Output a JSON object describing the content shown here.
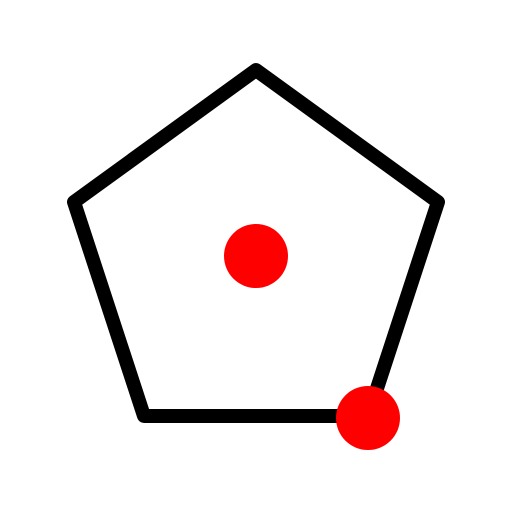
{
  "diagram": {
    "shape": "pentagon",
    "outline_color": "#000000",
    "background_color": "#ffffff",
    "markers": [
      {
        "name": "center-point",
        "color": "#ff0000"
      },
      {
        "name": "vertex-point",
        "color": "#ff0000"
      }
    ]
  }
}
